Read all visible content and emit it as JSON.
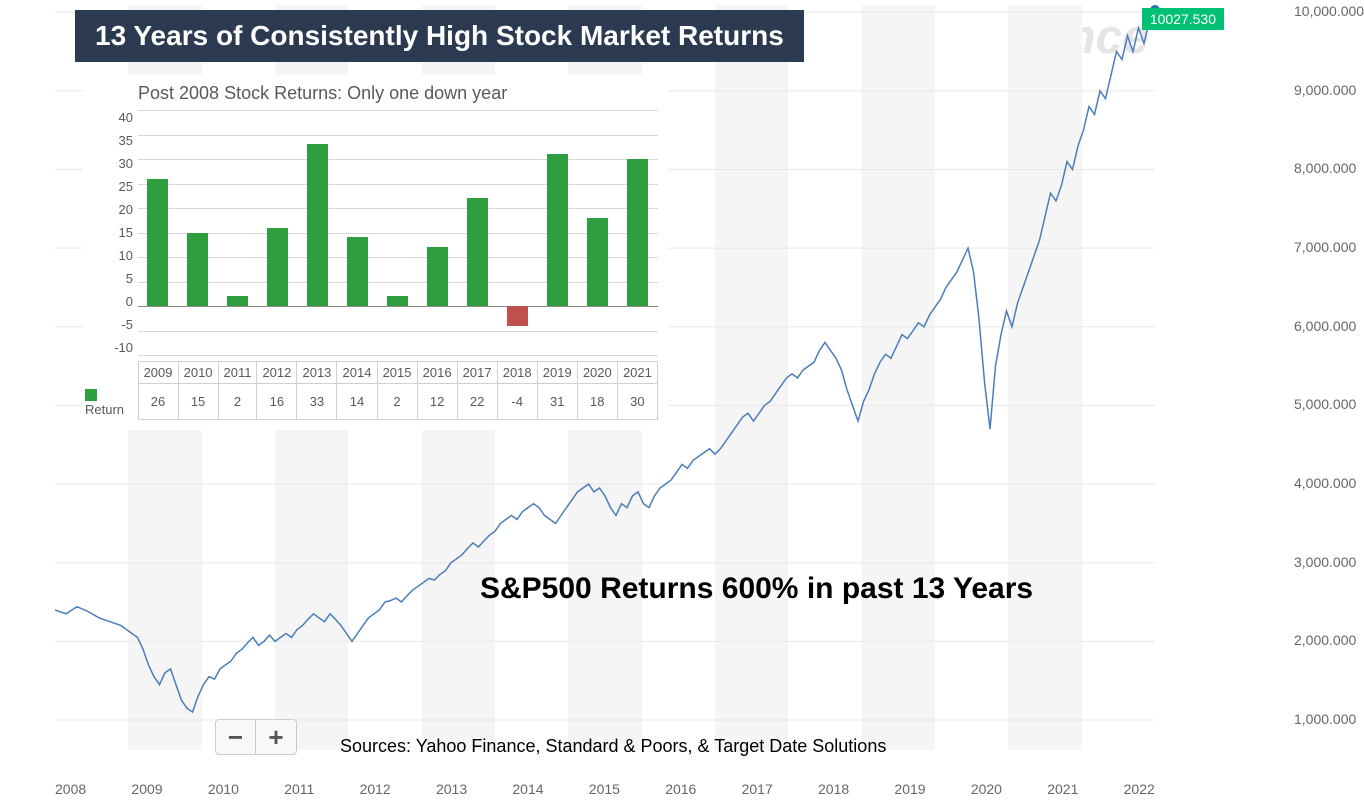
{
  "title": "13 Years of Consistently High Stock Market Returns",
  "subtitle": "S&P500 Returns 600% in past 13 Years",
  "sources": "Sources: Yahoo Finance, Standard & Poors, & Target Date Solutions",
  "watermark": "nce",
  "current_value_label": "10027.530",
  "zoom": {
    "minus": "−",
    "plus": "+"
  },
  "colors": {
    "title_bg": "#2b3a50",
    "title_text": "#ffffff",
    "line": "#4a7ebb",
    "line_dot": "#1f77b4",
    "badge_bg": "#00c073",
    "badge_text": "#ffffff",
    "watermark": "#e5e5e5",
    "grid": "#e8e8e8",
    "axis_text": "#666666",
    "bar_positive": "#2e9e3f",
    "bar_negative": "#c0504d",
    "bar_title": "#595959",
    "bar_grid": "#d9d9d9",
    "stripe_shade": "#f5f5f5"
  },
  "line_chart": {
    "type": "line",
    "x_labels": [
      "2008",
      "2009",
      "2010",
      "2011",
      "2012",
      "2013",
      "2014",
      "2015",
      "2016",
      "2017",
      "2018",
      "2019",
      "2020",
      "2021",
      "2022"
    ],
    "y_ticks": [
      "10,000.000",
      "9,000.000",
      "8,000.000",
      "7,000.000",
      "6,000.000",
      "5,000.000",
      "4,000.000",
      "3,000.000",
      "2,000.000",
      "1,000.000"
    ],
    "ylim": [
      1000,
      10027.53
    ],
    "stripe_pattern": [
      0,
      1,
      0,
      1,
      0,
      1,
      0,
      1,
      0,
      1,
      0,
      1,
      0,
      1,
      0
    ],
    "series_comment": "x is 0..1 fraction across plot width, y is value on ylim scale",
    "series": [
      [
        0.0,
        2400
      ],
      [
        0.01,
        2350
      ],
      [
        0.02,
        2440
      ],
      [
        0.03,
        2380
      ],
      [
        0.04,
        2300
      ],
      [
        0.05,
        2250
      ],
      [
        0.06,
        2200
      ],
      [
        0.07,
        2100
      ],
      [
        0.075,
        2050
      ],
      [
        0.08,
        1900
      ],
      [
        0.085,
        1700
      ],
      [
        0.09,
        1550
      ],
      [
        0.095,
        1450
      ],
      [
        0.1,
        1600
      ],
      [
        0.105,
        1650
      ],
      [
        0.11,
        1450
      ],
      [
        0.115,
        1250
      ],
      [
        0.12,
        1150
      ],
      [
        0.125,
        1100
      ],
      [
        0.13,
        1300
      ],
      [
        0.135,
        1450
      ],
      [
        0.14,
        1550
      ],
      [
        0.145,
        1520
      ],
      [
        0.15,
        1650
      ],
      [
        0.155,
        1700
      ],
      [
        0.16,
        1750
      ],
      [
        0.165,
        1850
      ],
      [
        0.17,
        1900
      ],
      [
        0.175,
        1980
      ],
      [
        0.18,
        2050
      ],
      [
        0.185,
        1950
      ],
      [
        0.19,
        2000
      ],
      [
        0.195,
        2080
      ],
      [
        0.2,
        2000
      ],
      [
        0.205,
        2050
      ],
      [
        0.21,
        2100
      ],
      [
        0.215,
        2050
      ],
      [
        0.22,
        2150
      ],
      [
        0.225,
        2200
      ],
      [
        0.23,
        2280
      ],
      [
        0.235,
        2350
      ],
      [
        0.24,
        2300
      ],
      [
        0.245,
        2250
      ],
      [
        0.25,
        2350
      ],
      [
        0.255,
        2280
      ],
      [
        0.26,
        2200
      ],
      [
        0.265,
        2100
      ],
      [
        0.27,
        2000
      ],
      [
        0.275,
        2100
      ],
      [
        0.28,
        2200
      ],
      [
        0.285,
        2300
      ],
      [
        0.29,
        2350
      ],
      [
        0.295,
        2400
      ],
      [
        0.3,
        2500
      ],
      [
        0.305,
        2520
      ],
      [
        0.31,
        2550
      ],
      [
        0.315,
        2500
      ],
      [
        0.32,
        2580
      ],
      [
        0.325,
        2650
      ],
      [
        0.33,
        2700
      ],
      [
        0.335,
        2750
      ],
      [
        0.34,
        2800
      ],
      [
        0.345,
        2780
      ],
      [
        0.35,
        2850
      ],
      [
        0.355,
        2900
      ],
      [
        0.36,
        3000
      ],
      [
        0.365,
        3050
      ],
      [
        0.37,
        3100
      ],
      [
        0.375,
        3180
      ],
      [
        0.38,
        3250
      ],
      [
        0.385,
        3200
      ],
      [
        0.39,
        3280
      ],
      [
        0.395,
        3350
      ],
      [
        0.4,
        3400
      ],
      [
        0.405,
        3500
      ],
      [
        0.41,
        3550
      ],
      [
        0.415,
        3600
      ],
      [
        0.42,
        3550
      ],
      [
        0.425,
        3650
      ],
      [
        0.43,
        3700
      ],
      [
        0.435,
        3750
      ],
      [
        0.44,
        3700
      ],
      [
        0.445,
        3600
      ],
      [
        0.45,
        3550
      ],
      [
        0.455,
        3500
      ],
      [
        0.46,
        3600
      ],
      [
        0.465,
        3700
      ],
      [
        0.47,
        3800
      ],
      [
        0.475,
        3900
      ],
      [
        0.48,
        3950
      ],
      [
        0.485,
        4000
      ],
      [
        0.49,
        3900
      ],
      [
        0.495,
        3950
      ],
      [
        0.5,
        3850
      ],
      [
        0.505,
        3700
      ],
      [
        0.51,
        3600
      ],
      [
        0.515,
        3750
      ],
      [
        0.52,
        3700
      ],
      [
        0.525,
        3850
      ],
      [
        0.53,
        3900
      ],
      [
        0.535,
        3750
      ],
      [
        0.54,
        3700
      ],
      [
        0.545,
        3850
      ],
      [
        0.55,
        3950
      ],
      [
        0.555,
        4000
      ],
      [
        0.56,
        4050
      ],
      [
        0.565,
        4150
      ],
      [
        0.57,
        4250
      ],
      [
        0.575,
        4200
      ],
      [
        0.58,
        4300
      ],
      [
        0.585,
        4350
      ],
      [
        0.59,
        4400
      ],
      [
        0.595,
        4450
      ],
      [
        0.6,
        4380
      ],
      [
        0.605,
        4450
      ],
      [
        0.61,
        4550
      ],
      [
        0.615,
        4650
      ],
      [
        0.62,
        4750
      ],
      [
        0.625,
        4850
      ],
      [
        0.63,
        4900
      ],
      [
        0.635,
        4800
      ],
      [
        0.64,
        4900
      ],
      [
        0.645,
        5000
      ],
      [
        0.65,
        5050
      ],
      [
        0.655,
        5150
      ],
      [
        0.66,
        5250
      ],
      [
        0.665,
        5350
      ],
      [
        0.67,
        5400
      ],
      [
        0.675,
        5350
      ],
      [
        0.68,
        5450
      ],
      [
        0.685,
        5500
      ],
      [
        0.69,
        5550
      ],
      [
        0.695,
        5700
      ],
      [
        0.7,
        5800
      ],
      [
        0.705,
        5700
      ],
      [
        0.71,
        5600
      ],
      [
        0.715,
        5450
      ],
      [
        0.72,
        5200
      ],
      [
        0.725,
        5000
      ],
      [
        0.73,
        4800
      ],
      [
        0.735,
        5050
      ],
      [
        0.74,
        5200
      ],
      [
        0.745,
        5400
      ],
      [
        0.75,
        5550
      ],
      [
        0.755,
        5650
      ],
      [
        0.76,
        5600
      ],
      [
        0.765,
        5750
      ],
      [
        0.77,
        5900
      ],
      [
        0.775,
        5850
      ],
      [
        0.78,
        5950
      ],
      [
        0.785,
        6050
      ],
      [
        0.79,
        6000
      ],
      [
        0.795,
        6150
      ],
      [
        0.8,
        6250
      ],
      [
        0.805,
        6350
      ],
      [
        0.81,
        6500
      ],
      [
        0.815,
        6600
      ],
      [
        0.82,
        6700
      ],
      [
        0.825,
        6850
      ],
      [
        0.83,
        7000
      ],
      [
        0.835,
        6700
      ],
      [
        0.84,
        6100
      ],
      [
        0.845,
        5300
      ],
      [
        0.85,
        4700
      ],
      [
        0.855,
        5500
      ],
      [
        0.86,
        5900
      ],
      [
        0.865,
        6200
      ],
      [
        0.87,
        6000
      ],
      [
        0.875,
        6300
      ],
      [
        0.88,
        6500
      ],
      [
        0.885,
        6700
      ],
      [
        0.89,
        6900
      ],
      [
        0.895,
        7100
      ],
      [
        0.9,
        7400
      ],
      [
        0.905,
        7700
      ],
      [
        0.91,
        7600
      ],
      [
        0.915,
        7800
      ],
      [
        0.92,
        8100
      ],
      [
        0.925,
        8000
      ],
      [
        0.93,
        8300
      ],
      [
        0.935,
        8500
      ],
      [
        0.94,
        8800
      ],
      [
        0.945,
        8700
      ],
      [
        0.95,
        9000
      ],
      [
        0.955,
        8900
      ],
      [
        0.96,
        9200
      ],
      [
        0.965,
        9500
      ],
      [
        0.97,
        9400
      ],
      [
        0.975,
        9700
      ],
      [
        0.98,
        9500
      ],
      [
        0.985,
        9800
      ],
      [
        0.99,
        9600
      ],
      [
        0.995,
        9900
      ],
      [
        1.0,
        10027.53
      ]
    ]
  },
  "bar_chart": {
    "type": "bar",
    "title": "Post 2008 Stock Returns: Only one down year",
    "legend_label": "Return",
    "ylim": [
      -10,
      40
    ],
    "ytick_step": 5,
    "y_ticks": [
      40,
      35,
      30,
      25,
      20,
      15,
      10,
      5,
      0,
      -5,
      -10
    ],
    "categories": [
      "2009",
      "2010",
      "2011",
      "2012",
      "2013",
      "2014",
      "2015",
      "2016",
      "2017",
      "2018",
      "2019",
      "2020",
      "2021"
    ],
    "values": [
      26,
      15,
      2,
      16,
      33,
      14,
      2,
      12,
      22,
      -4,
      31,
      18,
      30
    ],
    "bar_width_pct": 52,
    "positive_color": "#2e9e3f",
    "negative_color": "#c0504d"
  }
}
